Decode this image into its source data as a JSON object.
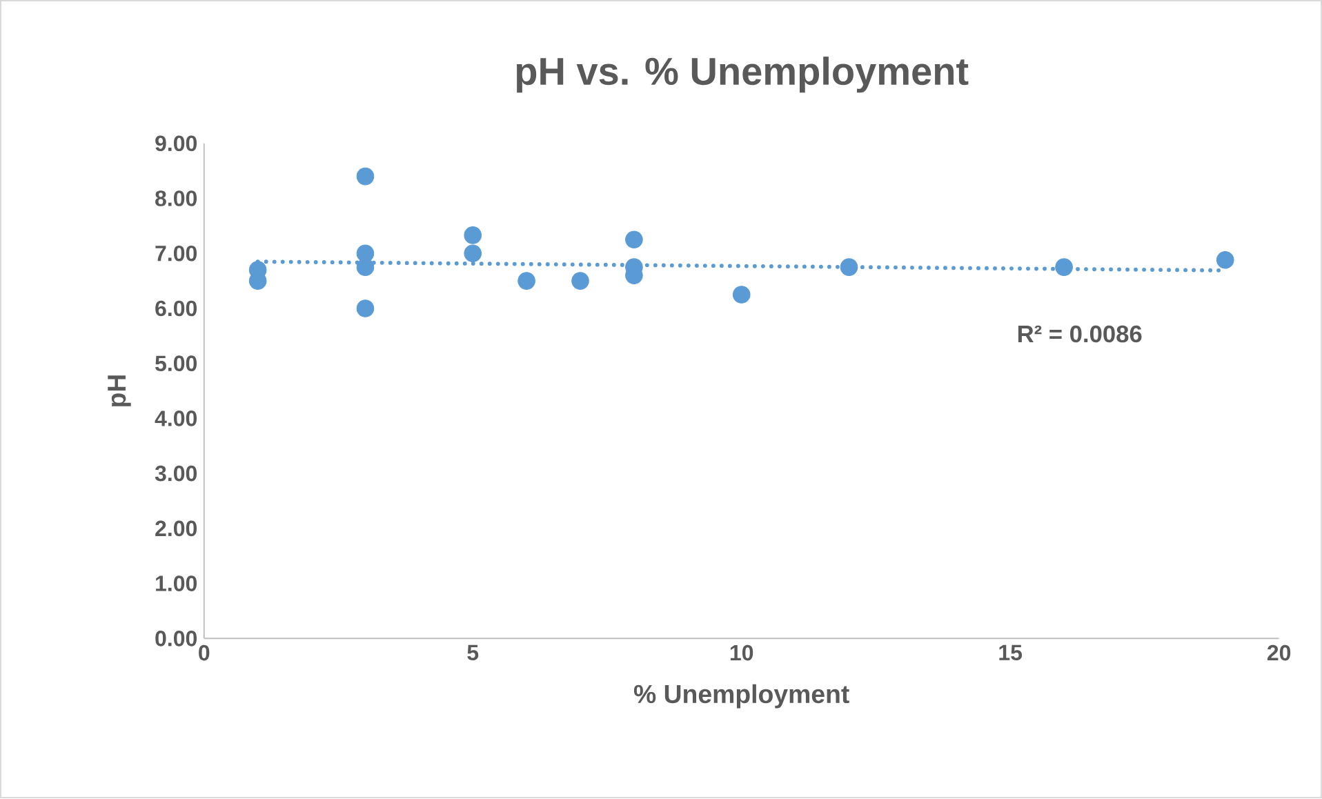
{
  "chart_data": {
    "type": "scatter",
    "title": "pH vs. % Unemployment",
    "xlabel": "% Unemployment",
    "ylabel": "pH",
    "xlim": [
      0,
      20
    ],
    "xticks": [
      0,
      5,
      10,
      15,
      20
    ],
    "ylim": [
      0,
      9
    ],
    "yticks": [
      {
        "value": 0,
        "label": "0.00"
      },
      {
        "value": 1,
        "label": "1.00"
      },
      {
        "value": 2,
        "label": "2.00"
      },
      {
        "value": 3,
        "label": "3.00"
      },
      {
        "value": 4,
        "label": "4.00"
      },
      {
        "value": 5,
        "label": "5.00"
      },
      {
        "value": 6,
        "label": "6.00"
      },
      {
        "value": 7,
        "label": "7.00"
      },
      {
        "value": 8,
        "label": "8.00"
      },
      {
        "value": 9,
        "label": "9.00"
      }
    ],
    "grid": false,
    "series": [
      {
        "color": "#5b9bd5",
        "marker": "circle",
        "x": [
          1,
          1,
          3,
          3,
          3,
          3,
          5,
          5,
          6,
          7,
          8,
          8,
          8,
          10,
          12,
          16,
          19
        ],
        "values": [
          6.7,
          6.5,
          8.4,
          7.0,
          6.75,
          6.0,
          7.33,
          7.0,
          6.5,
          6.5,
          7.25,
          6.75,
          6.6,
          6.25,
          6.75,
          6.75,
          6.88
        ]
      },
      {
        "type": "line",
        "color": "#5b9bd5",
        "line_style": "dotted",
        "marker": "none",
        "x": [
          1,
          19
        ],
        "values": [
          6.85,
          6.69
        ]
      }
    ],
    "annotations": [
      "R² = 0.0086"
    ]
  }
}
